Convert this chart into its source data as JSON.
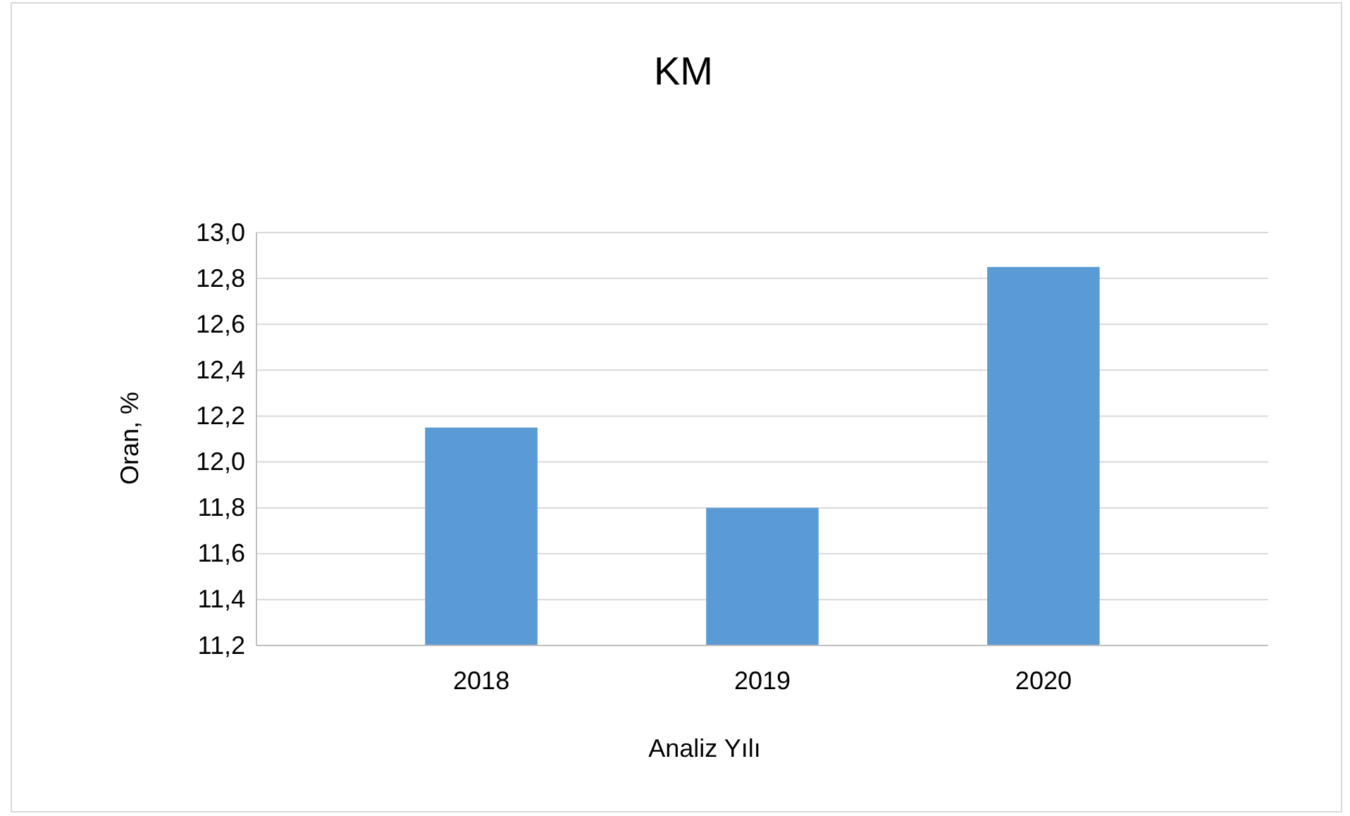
{
  "chart_data": {
    "type": "bar",
    "title": "KM",
    "xlabel": "Analiz Yılı",
    "ylabel": "Oran, %",
    "categories": [
      "2018",
      "2019",
      "2020"
    ],
    "values": [
      12.15,
      11.8,
      12.85
    ],
    "color": "#5b9bd5",
    "ylim": [
      11.2,
      13.0
    ],
    "yticks": [
      {
        "value": 11.2,
        "label": "11,2"
      },
      {
        "value": 11.4,
        "label": "11,4"
      },
      {
        "value": 11.6,
        "label": "11,6"
      },
      {
        "value": 11.8,
        "label": "11,8"
      },
      {
        "value": 12.0,
        "label": "12,0"
      },
      {
        "value": 12.2,
        "label": "12,2"
      },
      {
        "value": 12.4,
        "label": "12,4"
      },
      {
        "value": 12.6,
        "label": "12,6"
      },
      {
        "value": 12.8,
        "label": "12,8"
      },
      {
        "value": 13.0,
        "label": "13,0"
      }
    ],
    "grid": true
  }
}
